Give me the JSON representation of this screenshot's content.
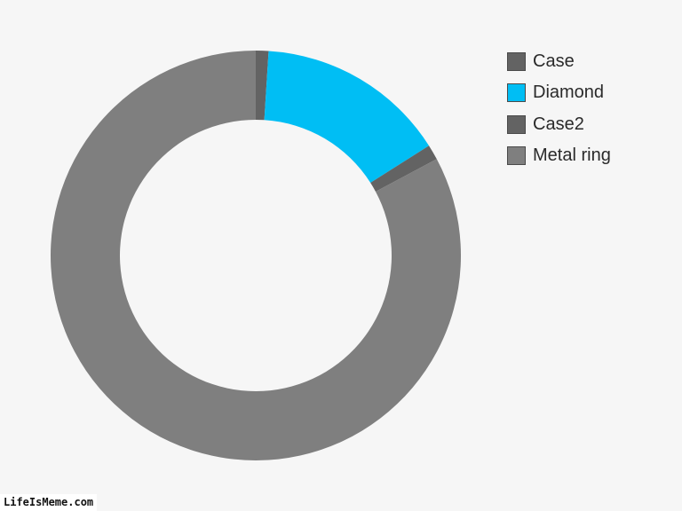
{
  "chart_data": {
    "type": "pie",
    "donut": true,
    "title": "",
    "legend_position": "top-right",
    "categories": [
      "Case",
      "Diamond",
      "Case2",
      "Metal ring"
    ],
    "values": [
      1,
      15,
      1.2,
      82.8
    ],
    "colors": [
      "#636363",
      "#00bef4",
      "#636363",
      "#7f7f7f"
    ]
  },
  "watermark": {
    "text": "LifeIsMeme.com"
  }
}
